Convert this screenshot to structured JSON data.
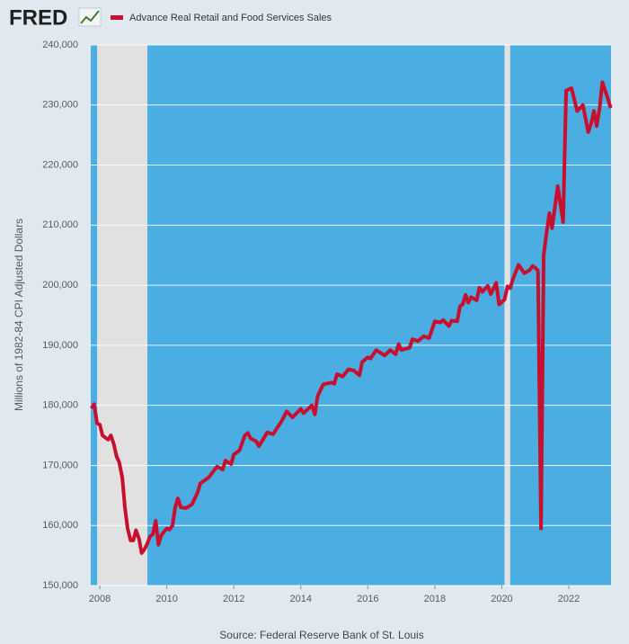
{
  "chart_data": {
    "type": "line",
    "logo": "FRED",
    "ylabel": "Millions of 1982-84 CPI Adjusted Dollars",
    "source": "Source: Federal Reserve Bank of St. Louis",
    "xlim": [
      2007.73,
      2023.26
    ],
    "xticks": [
      2008,
      2010,
      2012,
      2014,
      2016,
      2018,
      2020,
      2022
    ],
    "ylim": [
      150000,
      240000
    ],
    "yticks": [
      {
        "value": 150000,
        "label": "150,000"
      },
      {
        "value": 160000,
        "label": "160,000"
      },
      {
        "value": 170000,
        "label": "170,000"
      },
      {
        "value": 180000,
        "label": "180,000"
      },
      {
        "value": 190000,
        "label": "190,000"
      },
      {
        "value": 200000,
        "label": "200,000"
      },
      {
        "value": 210000,
        "label": "210,000"
      },
      {
        "value": 220000,
        "label": "220,000"
      },
      {
        "value": 230000,
        "label": "230,000"
      },
      {
        "value": 240000,
        "label": "240,000"
      }
    ],
    "grid": true,
    "background": "#4aaee2",
    "recession_color": "#e1e1e1",
    "recessions": [
      [
        2007.92,
        2009.42
      ],
      [
        2020.08,
        2020.25
      ]
    ],
    "series": [
      {
        "name": "Advance Real Retail and Food Services Sales",
        "color": "#c8102e",
        "x": [
          2007.75,
          2007.83,
          2007.92,
          2008.0,
          2008.08,
          2008.17,
          2008.25,
          2008.33,
          2008.42,
          2008.5,
          2008.58,
          2008.67,
          2008.75,
          2008.83,
          2008.92,
          2009.0,
          2009.08,
          2009.17,
          2009.25,
          2009.33,
          2009.42,
          2009.5,
          2009.58,
          2009.67,
          2009.75,
          2009.83,
          2009.92,
          2010.0,
          2010.08,
          2010.17,
          2010.25,
          2010.33,
          2010.42,
          2010.58,
          2010.75,
          2010.92,
          2011.0,
          2011.25,
          2011.5,
          2011.67,
          2011.75,
          2011.92,
          2012.0,
          2012.17,
          2012.33,
          2012.42,
          2012.5,
          2012.67,
          2012.75,
          2013.0,
          2013.17,
          2013.42,
          2013.58,
          2013.75,
          2014.0,
          2014.08,
          2014.33,
          2014.42,
          2014.5,
          2014.67,
          2014.92,
          2015.0,
          2015.08,
          2015.25,
          2015.42,
          2015.58,
          2015.75,
          2015.83,
          2016.0,
          2016.08,
          2016.25,
          2016.5,
          2016.67,
          2016.83,
          2016.92,
          2017.0,
          2017.25,
          2017.33,
          2017.5,
          2017.67,
          2017.83,
          2018.0,
          2018.17,
          2018.25,
          2018.42,
          2018.5,
          2018.67,
          2018.75,
          2018.83,
          2018.92,
          2019.0,
          2019.08,
          2019.25,
          2019.33,
          2019.42,
          2019.58,
          2019.67,
          2019.83,
          2019.92,
          2020.08,
          2020.17,
          2020.25,
          2020.33,
          2020.5,
          2020.67,
          2020.83,
          2020.92,
          2021.0,
          2021.08,
          2021.17,
          2021.25,
          2021.33,
          2021.42,
          2021.5,
          2021.67,
          2021.83,
          2021.92,
          2022.08,
          2022.25,
          2022.42,
          2022.58,
          2022.67,
          2022.75,
          2022.83,
          2022.92,
          2023.0,
          2023.17,
          2023.25
        ],
        "values": [
          179500,
          180200,
          177000,
          176800,
          175000,
          174600,
          174300,
          175000,
          173500,
          171500,
          170500,
          168000,
          163000,
          159500,
          157500,
          157500,
          159200,
          157800,
          155400,
          156000,
          157000,
          158200,
          158500,
          160800,
          156800,
          158300,
          159000,
          159500,
          159300,
          160000,
          163000,
          164500,
          163000,
          162900,
          163500,
          165500,
          167000,
          168000,
          169800,
          169300,
          170800,
          170200,
          171800,
          172500,
          175000,
          175400,
          174500,
          174000,
          173200,
          175500,
          175200,
          177300,
          179000,
          178000,
          179400,
          178700,
          180000,
          178500,
          181500,
          183500,
          183800,
          183600,
          185200,
          184800,
          186000,
          185800,
          185000,
          187200,
          188000,
          187800,
          189200,
          188300,
          189200,
          188500,
          190200,
          189200,
          189600,
          191000,
          190700,
          191500,
          191200,
          194000,
          193800,
          194200,
          193200,
          194100,
          194000,
          196500,
          196800,
          198400,
          197100,
          198000,
          197500,
          199600,
          198900,
          199900,
          198500,
          200400,
          196800,
          197600,
          199800,
          199500,
          201000,
          203400,
          202000,
          202500,
          203200,
          202900,
          202400,
          159500,
          205000,
          208500,
          212000,
          209500,
          216500,
          210500,
          232400,
          232800,
          229000,
          230000,
          225500,
          227000,
          229000,
          226500,
          229500,
          233800,
          231000,
          229500
        ]
      }
    ]
  }
}
